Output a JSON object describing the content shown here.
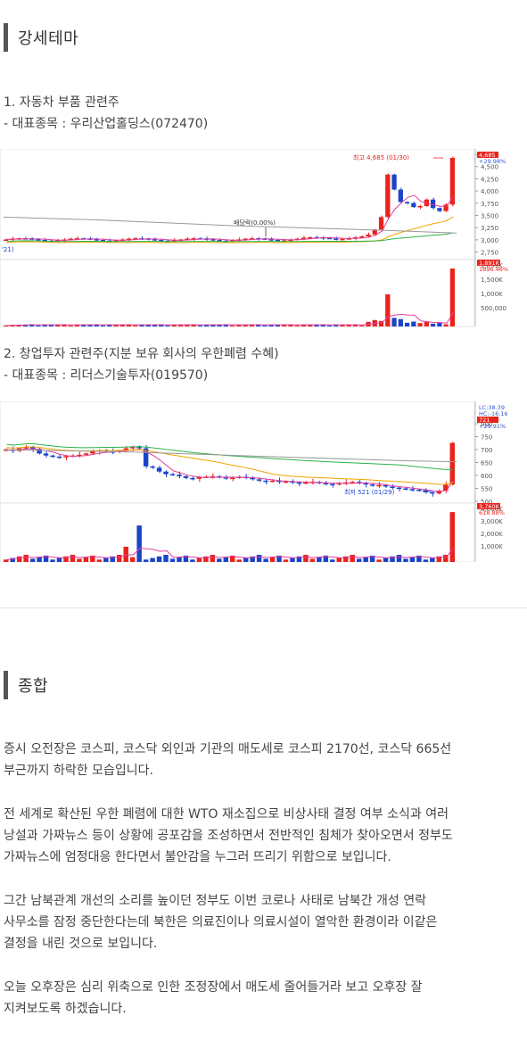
{
  "section1": {
    "heading": "강세테마",
    "items": [
      {
        "title": "1. 자동차 부품 관련주",
        "stock": "- 대표종목 : 우리산업홀딩스(072470)"
      },
      {
        "title": "2. 창업투자 관련주(지분 보유 회사의 우한폐렴 수혜)",
        "stock": "- 대표종목 : 리더스기술투자(019570)"
      }
    ]
  },
  "chart_data": [
    {
      "type": "candlestick",
      "y_ticks": [
        "4,685",
        "4,500",
        "4,250",
        "4,000",
        "3,750",
        "3,500",
        "3,250",
        "3,000",
        "2,750"
      ],
      "price_badges": [
        "4,685",
        "+29.98%"
      ],
      "annotations": [
        "최고 4,685 (01/30)",
        "배당락(0.00%)",
        "'21)"
      ],
      "volume_ticks": [
        "1,891K",
        "1,500K",
        "1,000K",
        "500,000"
      ],
      "volume_badges": [
        "1,891K",
        "1696.46%"
      ],
      "colors": {
        "up": "#e8231b",
        "down": "#1a44c8",
        "ma5": "#e23ca0",
        "ma20": "#f0a400",
        "ma60": "#2bb24c",
        "ma120": "#999999"
      }
    },
    {
      "type": "candlestick",
      "y_ticks": [
        "800",
        "750",
        "700",
        "650",
        "600",
        "550",
        "500"
      ],
      "price_badges": [
        "LC:38.39",
        "HC:-16.16",
        "721",
        "+29.91%"
      ],
      "annotations": [
        "최저 521 (01/29)"
      ],
      "volume_ticks": [
        "4,000K",
        "3,000K",
        "2,000K",
        "1,000K"
      ],
      "volume_badges": [
        "3,760K",
        "618.88%"
      ],
      "colors": {
        "up": "#e8231b",
        "down": "#1a44c8",
        "ma5": "#e23ca0",
        "ma20": "#f0a400",
        "ma60": "#2bb24c",
        "ma120": "#999999"
      }
    }
  ],
  "section2": {
    "heading": "종합",
    "paragraphs": [
      [
        "증시 오전장은 코스피, 코스닥 외인과 기관의 매도세로 코스피 2170선, 코스닥 665선",
        "부근까지 하락한 모습입니다."
      ],
      [
        "전 세계로 확산된 우한 폐렴에 대한 WTO 재소집으로 비상사태 결정 여부 소식과 여러",
        "낭설과 가짜뉴스 등이 상황에 공포감을 조성하면서 전반적인 침체가 찾아오면서 정부도",
        "가짜뉴스에 엄정대응 한다면서 불안감을 누그러 뜨리기 위함으로 보입니다."
      ],
      [
        "그간 남북관계 개선의 소리를 높이던 정부도 이번 코로나 사태로 남북간 개성 연락",
        "사무소를 잠정 중단한다는데 북한은 의료진이나 의료시설이 열악한 환경이라 이같은",
        "결정을 내린 것으로 보입니다."
      ],
      [
        "오늘 오후장은 심리 위축으로 인한 조정장에서 매도세 줄어들거라 보고 오후장 잘",
        "지켜보도록 하겠습니다."
      ]
    ]
  }
}
